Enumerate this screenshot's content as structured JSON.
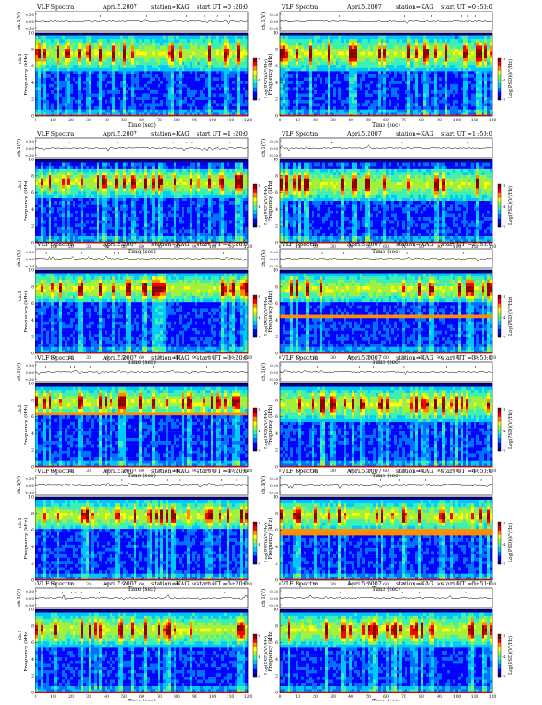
{
  "common": {
    "label": "VLF Spectra",
    "date": "Apri.5.2007",
    "station": "station=KAG",
    "ut_prefix": "start  UT =",
    "ch_label": "ch.1(V)",
    "ch_ticks": [
      "0.30",
      "0.00",
      "-0.30"
    ],
    "freq_label": "Frequency  (kHz)",
    "ch1_small": "ch.1",
    "time_label": "Time  (sec)",
    "x_ticks": [
      "0",
      "10",
      "20",
      "30",
      "40",
      "50",
      "60",
      "70",
      "80",
      "90",
      "100",
      "110",
      "120"
    ],
    "y_ticks": [
      "0",
      "2",
      "4",
      "6",
      "8",
      "10"
    ],
    "colorbar_label": "Log(PSD)(V²/Hz)",
    "colorbar_ticks": [
      "-1",
      "-4",
      "-7"
    ],
    "colorscale": [
      "#00008b",
      "#0000ff",
      "#0070ff",
      "#00c8ff",
      "#3cf0b4",
      "#a0f03c",
      "#ffff00",
      "#ff8c00",
      "#ff0000",
      "#8b0000"
    ]
  },
  "chart_data": [
    {
      "type": "heatmap",
      "start_ut": "0 :20:0",
      "x_range": [
        0,
        120
      ],
      "y_range": [
        0,
        10
      ],
      "y_label_has_ch1": true,
      "emission_band_khz": [
        5.5,
        9.5
      ],
      "line_khz": null
    },
    {
      "type": "heatmap",
      "start_ut": "0 :50:0",
      "x_range": [
        0,
        120
      ],
      "y_range": [
        0,
        10
      ],
      "y_label_has_ch1": false,
      "emission_band_khz": [
        5.5,
        9.5
      ],
      "line_khz": null
    },
    {
      "type": "heatmap",
      "start_ut": "1 :20:0",
      "x_range": [
        0,
        120
      ],
      "y_range": [
        0,
        10
      ],
      "y_label_has_ch1": true,
      "emission_band_khz": [
        5.5,
        9.0
      ],
      "line_khz": null
    },
    {
      "type": "heatmap",
      "start_ut": "1 :50:0",
      "x_range": [
        0,
        120
      ],
      "y_range": [
        0,
        10
      ],
      "y_label_has_ch1": false,
      "emission_band_khz": [
        5.0,
        9.0
      ],
      "line_khz": null
    },
    {
      "type": "heatmap",
      "start_ut": "2 :20:0",
      "x_range": [
        0,
        120
      ],
      "y_range": [
        0,
        10
      ],
      "y_label_has_ch1": true,
      "emission_band_khz": [
        6.0,
        9.5
      ],
      "line_khz": null
    },
    {
      "type": "heatmap",
      "start_ut": "2 :50:0",
      "x_range": [
        0,
        120
      ],
      "y_range": [
        0,
        10
      ],
      "y_label_has_ch1": false,
      "emission_band_khz": [
        6.0,
        9.5
      ],
      "line_khz": 4.3
    },
    {
      "type": "heatmap",
      "start_ut": "3 :20:0",
      "x_range": [
        0,
        120
      ],
      "y_range": [
        0,
        10
      ],
      "y_label_has_ch1": true,
      "emission_band_khz": [
        6.0,
        9.5
      ],
      "line_khz": 6.5
    },
    {
      "type": "heatmap",
      "start_ut": "3 :50:0",
      "x_range": [
        0,
        120
      ],
      "y_range": [
        0,
        10
      ],
      "y_label_has_ch1": false,
      "emission_band_khz": [
        5.5,
        9.5
      ],
      "line_khz": null
    },
    {
      "type": "heatmap",
      "start_ut": "4 :20:0",
      "x_range": [
        0,
        120
      ],
      "y_range": [
        0,
        10
      ],
      "y_label_has_ch1": true,
      "emission_band_khz": [
        6.0,
        9.5
      ],
      "line_khz": null
    },
    {
      "type": "heatmap",
      "start_ut": "4 :50:0",
      "x_range": [
        0,
        120
      ],
      "y_range": [
        0,
        10
      ],
      "y_label_has_ch1": false,
      "emission_band_khz": [
        6.0,
        9.5
      ],
      "line_khz": 5.8
    },
    {
      "type": "heatmap",
      "start_ut": "5 :20:0",
      "x_range": [
        0,
        120
      ],
      "y_range": [
        0,
        10
      ],
      "y_label_has_ch1": true,
      "emission_band_khz": [
        5.5,
        9.5
      ],
      "line_khz": null
    },
    {
      "type": "heatmap",
      "start_ut": "5 :50:0",
      "x_range": [
        0,
        120
      ],
      "y_range": [
        0,
        10
      ],
      "y_label_has_ch1": false,
      "emission_band_khz": [
        5.5,
        9.5
      ],
      "line_khz": null
    }
  ]
}
